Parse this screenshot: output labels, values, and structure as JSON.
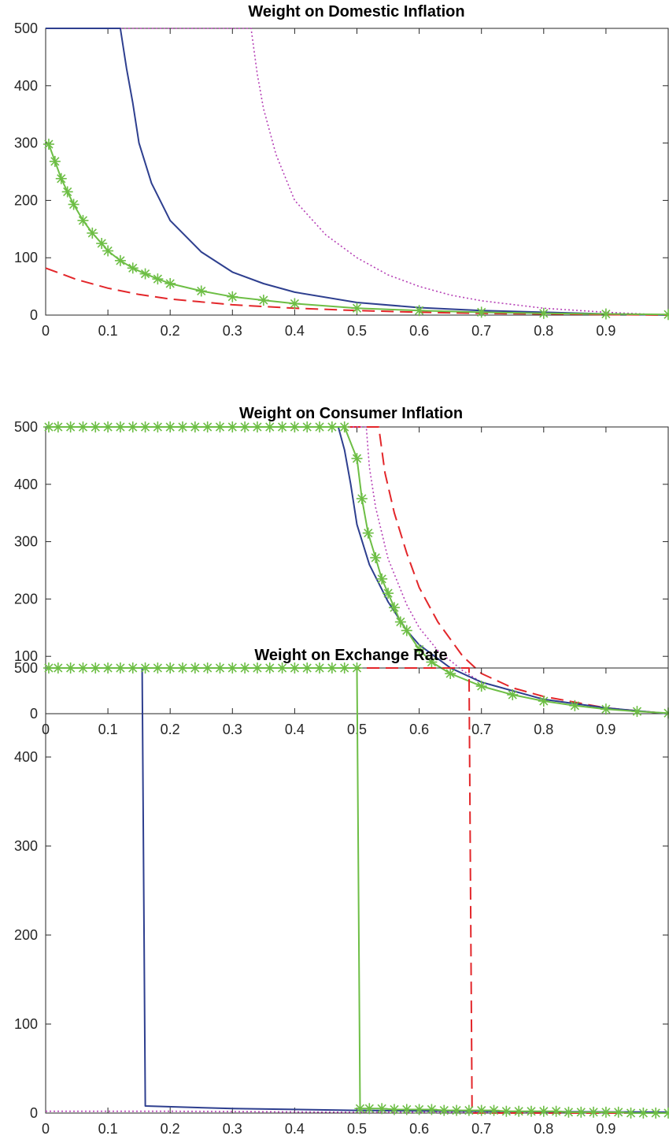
{
  "series_styles": {
    "blue_solid": {
      "color": "#2e3f8f",
      "dash": "",
      "width": 2,
      "marker": "none"
    },
    "magenta_dotted": {
      "color": "#b640b6",
      "dash": "2,3",
      "width": 1.6,
      "marker": "none"
    },
    "red_dashed": {
      "color": "#e3262a",
      "dash": "16,8",
      "width": 2,
      "marker": "none"
    },
    "green_star": {
      "color": "#6dbe45",
      "dash": "",
      "width": 2,
      "marker": "star"
    }
  },
  "chart_data": [
    {
      "type": "line",
      "title": "Weight on Domestic Inflation",
      "xlabel": "",
      "ylabel": "",
      "xlim": [
        0,
        1
      ],
      "ylim": [
        0,
        500
      ],
      "xticks": [
        "0",
        "0.1",
        "0.2",
        "0.3",
        "0.4",
        "0.5",
        "0.6",
        "0.7",
        "0.8",
        "0.9"
      ],
      "yticks": [
        "0",
        "100",
        "200",
        "300",
        "400",
        "500"
      ],
      "grid": false,
      "series": [
        {
          "style": "magenta_dotted",
          "x": [
            0,
            0.33,
            0.34,
            0.35,
            0.37,
            0.4,
            0.45,
            0.5,
            0.55,
            0.6,
            0.65,
            0.7,
            0.8,
            0.9,
            1.0
          ],
          "y": [
            500,
            500,
            420,
            360,
            280,
            200,
            140,
            100,
            70,
            50,
            35,
            25,
            12,
            5,
            0
          ]
        },
        {
          "style": "blue_solid",
          "x": [
            0,
            0.12,
            0.13,
            0.14,
            0.15,
            0.17,
            0.2,
            0.25,
            0.3,
            0.35,
            0.4,
            0.5,
            0.6,
            0.7,
            0.8,
            0.9,
            1.0
          ],
          "y": [
            500,
            500,
            430,
            370,
            300,
            230,
            165,
            110,
            75,
            55,
            40,
            22,
            13,
            8,
            5,
            2,
            0
          ]
        },
        {
          "style": "red_dashed",
          "x": [
            0,
            0.05,
            0.1,
            0.15,
            0.2,
            0.3,
            0.4,
            0.5,
            0.6,
            0.7,
            0.8,
            0.9,
            1.0
          ],
          "y": [
            82,
            62,
            47,
            36,
            28,
            18,
            12,
            8,
            5,
            3,
            2,
            1,
            0
          ]
        },
        {
          "style": "green_star",
          "x": [
            0.005,
            0.015,
            0.025,
            0.035,
            0.045,
            0.06,
            0.075,
            0.09,
            0.1,
            0.12,
            0.14,
            0.16,
            0.18,
            0.2,
            0.25,
            0.3,
            0.35,
            0.4,
            0.5,
            0.6,
            0.7,
            0.8,
            0.9,
            1.0
          ],
          "y": [
            298,
            268,
            238,
            215,
            193,
            165,
            143,
            125,
            112,
            95,
            82,
            72,
            63,
            55,
            42,
            32,
            26,
            20,
            12,
            8,
            5,
            3,
            2,
            1
          ]
        }
      ]
    },
    {
      "type": "line",
      "title": "Weight on Consumer Inflation",
      "xlabel": "",
      "ylabel": "",
      "xlim": [
        0,
        1
      ],
      "ylim": [
        0,
        500
      ],
      "xticks": [
        "0",
        "0.1",
        "0.2",
        "0.3",
        "0.4",
        "0.5",
        "0.6",
        "0.7",
        "0.8",
        "0.9"
      ],
      "yticks": [
        "0",
        "100",
        "200",
        "300",
        "400",
        "500"
      ],
      "grid": false,
      "series": [
        {
          "style": "red_dashed",
          "x": [
            0,
            0.535,
            0.545,
            0.56,
            0.58,
            0.6,
            0.63,
            0.67,
            0.7,
            0.75,
            0.8,
            0.9,
            1.0
          ],
          "y": [
            500,
            500,
            420,
            350,
            280,
            220,
            160,
            100,
            70,
            45,
            30,
            10,
            0
          ]
        },
        {
          "style": "magenta_dotted",
          "x": [
            0,
            0.515,
            0.52,
            0.53,
            0.55,
            0.58,
            0.6,
            0.63,
            0.67,
            0.7,
            0.8,
            0.9,
            1.0
          ],
          "y": [
            500,
            500,
            430,
            360,
            270,
            190,
            150,
            110,
            75,
            55,
            25,
            10,
            0
          ]
        },
        {
          "style": "blue_solid",
          "x": [
            0,
            0.47,
            0.48,
            0.49,
            0.5,
            0.52,
            0.55,
            0.58,
            0.6,
            0.65,
            0.7,
            0.8,
            0.9,
            1.0
          ],
          "y": [
            500,
            500,
            460,
            400,
            330,
            260,
            195,
            145,
            120,
            80,
            55,
            25,
            10,
            0
          ]
        },
        {
          "style": "green_star",
          "x": [
            0.005,
            0.02,
            0.04,
            0.06,
            0.08,
            0.1,
            0.12,
            0.14,
            0.16,
            0.18,
            0.2,
            0.22,
            0.24,
            0.26,
            0.28,
            0.3,
            0.32,
            0.34,
            0.36,
            0.38,
            0.4,
            0.42,
            0.44,
            0.46,
            0.48,
            0.5,
            0.508,
            0.518,
            0.53,
            0.54,
            0.55,
            0.56,
            0.57,
            0.58,
            0.6,
            0.62,
            0.65,
            0.7,
            0.75,
            0.8,
            0.85,
            0.9,
            0.95,
            1.0
          ],
          "y": [
            500,
            500,
            500,
            500,
            500,
            500,
            500,
            500,
            500,
            500,
            500,
            500,
            500,
            500,
            500,
            500,
            500,
            500,
            500,
            500,
            500,
            500,
            500,
            500,
            500,
            445,
            375,
            315,
            272,
            235,
            210,
            185,
            160,
            145,
            112,
            90,
            70,
            48,
            33,
            22,
            14,
            8,
            4,
            1
          ]
        }
      ]
    },
    {
      "type": "line",
      "title": "Weight on Exchange Rate",
      "xlabel": "",
      "ylabel": "",
      "xlim": [
        0,
        1
      ],
      "ylim": [
        0,
        500
      ],
      "xticks": [
        "0",
        "0.1",
        "0.2",
        "0.3",
        "0.4",
        "0.5",
        "0.6",
        "0.7",
        "0.8",
        "0.9"
      ],
      "yticks": [
        "0",
        "100",
        "200",
        "300",
        "400",
        "500"
      ],
      "grid": false,
      "series": [
        {
          "style": "magenta_dotted",
          "x": [
            0,
            0.2,
            0.5,
            0.8,
            1.0
          ],
          "y": [
            2,
            2,
            1,
            1,
            0
          ]
        },
        {
          "style": "red_dashed",
          "x": [
            0,
            0.68,
            0.685,
            1.0
          ],
          "y": [
            500,
            500,
            0,
            0
          ]
        },
        {
          "style": "blue_solid",
          "x": [
            0,
            0.155,
            0.16,
            0.3,
            0.5,
            0.7,
            1.0
          ],
          "y": [
            500,
            500,
            8,
            5,
            3,
            2,
            1
          ]
        },
        {
          "style": "green_star",
          "x": [
            0.005,
            0.02,
            0.04,
            0.06,
            0.08,
            0.1,
            0.12,
            0.14,
            0.16,
            0.18,
            0.2,
            0.22,
            0.24,
            0.26,
            0.28,
            0.3,
            0.32,
            0.34,
            0.36,
            0.38,
            0.4,
            0.42,
            0.44,
            0.46,
            0.48,
            0.5,
            0.505,
            0.52,
            0.54,
            0.56,
            0.58,
            0.6,
            0.62,
            0.64,
            0.66,
            0.68,
            0.7,
            0.72,
            0.74,
            0.76,
            0.78,
            0.8,
            0.82,
            0.84,
            0.86,
            0.88,
            0.9,
            0.92,
            0.94,
            0.96,
            0.98,
            1.0
          ],
          "y": [
            500,
            500,
            500,
            500,
            500,
            500,
            500,
            500,
            500,
            500,
            500,
            500,
            500,
            500,
            500,
            500,
            500,
            500,
            500,
            500,
            500,
            500,
            500,
            500,
            500,
            500,
            5,
            5,
            5,
            4,
            4,
            4,
            4,
            3,
            3,
            3,
            3,
            3,
            2,
            2,
            2,
            2,
            2,
            1,
            1,
            1,
            1,
            1,
            0,
            0,
            0,
            0
          ]
        }
      ]
    }
  ]
}
